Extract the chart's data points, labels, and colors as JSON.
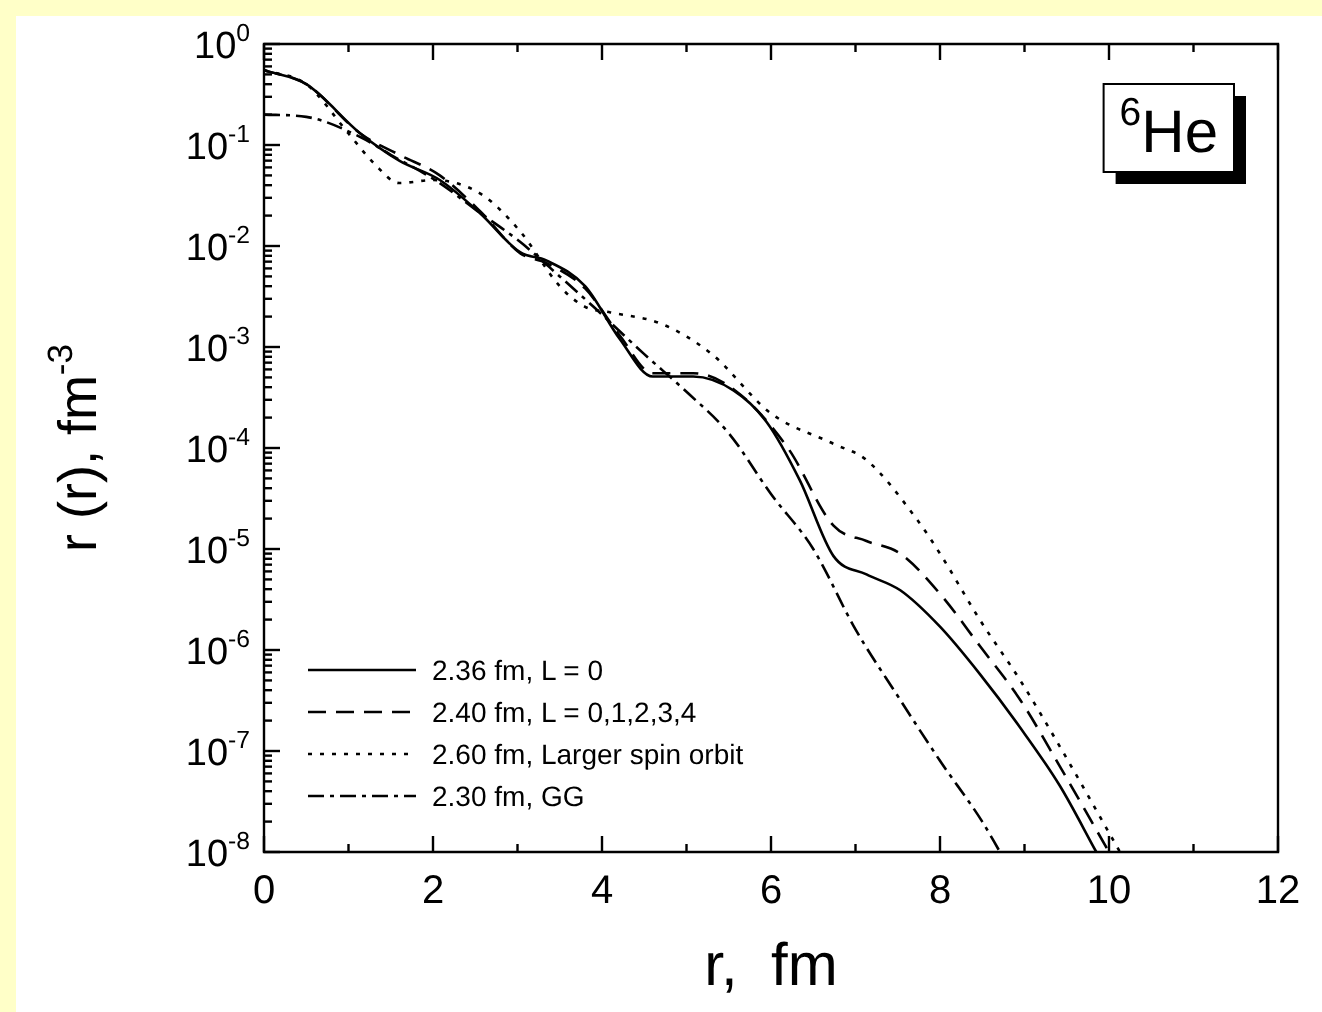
{
  "chart_data": {
    "type": "line",
    "xlabel": "r,  fm",
    "ylabel": "r (r), fm$^{-3}$",
    "annotations": [
      "$^{6}$He"
    ],
    "log": "y",
    "grid": false,
    "legend": "bottom left",
    "marker": "none",
    "xlim": [
      0,
      12
    ],
    "xticks": [
      0,
      2,
      4,
      6,
      8,
      10,
      12
    ],
    "ylim": [
      1e-08,
      1
    ],
    "yticks": [
      {
        "value": 1e-08,
        "label": "10$^{-8}$"
      },
      {
        "value": 1e-07,
        "label": "10$^{-7}$"
      },
      {
        "value": 1e-06,
        "label": "10$^{-6}$"
      },
      {
        "value": 1e-05,
        "label": "10$^{-5}$"
      },
      {
        "value": 0.0001,
        "label": "10$^{-4}$"
      },
      {
        "value": 0.001,
        "label": "10$^{-3}$"
      },
      {
        "value": 0.01,
        "label": "10$^{-2}$"
      },
      {
        "value": 0.1,
        "label": "10$^{-1}$"
      },
      {
        "value": 1,
        "label": "10$^{0}$"
      }
    ],
    "series": [
      {
        "name": "2.36 fm, L = 0",
        "color": "#000000",
        "line_style": "solid",
        "x": [
          0,
          0.5,
          1.14,
          1.6,
          2.08,
          2.56,
          3.03,
          3.34,
          3.8,
          4.21,
          4.6,
          5.08,
          5.56,
          5.95,
          6.34,
          6.74,
          7.13,
          7.53,
          8.0,
          8.47,
          8.95,
          9.42,
          9.85
        ],
        "values": [
          0.55,
          0.4,
          0.13,
          0.07,
          0.045,
          0.021,
          0.0087,
          0.0072,
          0.004,
          0.0012,
          0.00051,
          0.00051,
          0.00037,
          0.00018,
          4.8e-05,
          8.5e-06,
          5.6e-06,
          3.9e-06,
          1.7e-06,
          5.8e-07,
          1.7e-07,
          4.5e-08,
          1e-08
        ]
      },
      {
        "name": "2.40 fm, L = 0,1,2,3,4",
        "color": "#000000",
        "line_style": "dashed",
        "x": [
          0,
          0.5,
          1.14,
          1.6,
          2.08,
          2.56,
          3.03,
          3.34,
          3.8,
          4.21,
          4.6,
          5.08,
          5.56,
          6.2,
          6.74,
          7.13,
          7.53,
          8.0,
          8.47,
          8.95,
          9.42,
          10.0
        ],
        "values": [
          0.55,
          0.4,
          0.13,
          0.08,
          0.05,
          0.022,
          0.0085,
          0.0068,
          0.0038,
          0.0013,
          0.00055,
          0.00055,
          0.00038,
          0.0001,
          1.7e-05,
          1.2e-05,
          9e-06,
          3.6e-06,
          1.1e-06,
          3.2e-07,
          7e-08,
          1e-08
        ]
      },
      {
        "name": "2.60 fm, Larger spin orbit",
        "color": "#000000",
        "line_style": "dotted",
        "x": [
          0,
          0.5,
          1.0,
          1.3,
          1.6,
          2.0,
          2.56,
          3.03,
          3.5,
          3.8,
          4.1,
          4.7,
          5.3,
          6.0,
          6.74,
          7.13,
          7.72,
          8.0,
          8.47,
          8.95,
          9.42,
          10.13
        ],
        "values": [
          0.55,
          0.4,
          0.13,
          0.066,
          0.042,
          0.045,
          0.033,
          0.014,
          0.004,
          0.0025,
          0.0022,
          0.0017,
          0.00085,
          0.00022,
          0.00011,
          7.6e-05,
          2e-05,
          9e-06,
          2e-06,
          5e-07,
          1.1e-07,
          1e-08
        ]
      },
      {
        "name": "2.30 fm, GG",
        "color": "#000000",
        "line_style": "dashdot",
        "x": [
          0,
          0.5,
          1.14,
          1.5,
          2.08,
          2.5,
          3.03,
          3.5,
          3.9,
          4.5,
          5.0,
          5.5,
          6.0,
          6.5,
          7.0,
          7.5,
          8.0,
          8.5,
          8.71
        ],
        "values": [
          0.2,
          0.19,
          0.12,
          0.08,
          0.042,
          0.023,
          0.011,
          0.005,
          0.0025,
          0.00085,
          0.00036,
          0.00014,
          3.5e-05,
          1e-05,
          1.6e-06,
          3.5e-07,
          8e-08,
          2e-08,
          1e-08
        ]
      }
    ]
  }
}
